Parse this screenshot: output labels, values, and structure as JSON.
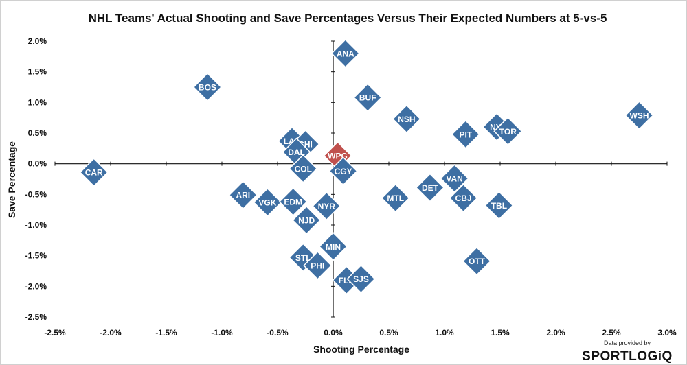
{
  "chart_data": {
    "type": "scatter",
    "title": "NHL Teams' Actual Shooting and Save Percentages Versus Their Expected Numbers at 5-vs-5",
    "xlabel": "Shooting Percentage",
    "ylabel": "Save Percentage",
    "xlim": [
      -2.5,
      3.0
    ],
    "ylim": [
      -2.5,
      2.0
    ],
    "x_ticks": [
      -2.5,
      -2.0,
      -1.5,
      -1.0,
      -0.5,
      0.0,
      0.5,
      1.0,
      1.5,
      2.0,
      2.5,
      3.0
    ],
    "y_ticks": [
      -2.5,
      -2.0,
      -1.5,
      -1.0,
      -0.5,
      0.0,
      0.5,
      1.0,
      1.5,
      2.0
    ],
    "x_tick_labels": [
      "-2.5%",
      "-2.0%",
      "-1.5%",
      "-1.0%",
      "-0.5%",
      "0.0%",
      "0.5%",
      "1.0%",
      "1.5%",
      "2.0%",
      "2.5%",
      "3.0%"
    ],
    "y_tick_labels": [
      "-2.5%",
      "-2.0%",
      "-1.5%",
      "-1.0%",
      "-0.5%",
      "0.0%",
      "0.5%",
      "1.0%",
      "1.5%",
      "2.0%"
    ],
    "grid": false,
    "colors": {
      "default": "#3e6fa3",
      "highlight": "#c0504d"
    },
    "points": [
      {
        "label": "ANA",
        "x": 0.11,
        "y": 1.8
      },
      {
        "label": "BOS",
        "x": -1.13,
        "y": 1.25
      },
      {
        "label": "BUF",
        "x": 0.31,
        "y": 1.08
      },
      {
        "label": "NSH",
        "x": 0.66,
        "y": 0.73
      },
      {
        "label": "PIT",
        "x": 1.19,
        "y": 0.48
      },
      {
        "label": "NYI",
        "x": 1.47,
        "y": 0.6
      },
      {
        "label": "TOR",
        "x": 1.57,
        "y": 0.53
      },
      {
        "label": "WSH",
        "x": 2.75,
        "y": 0.79
      },
      {
        "label": "LAK",
        "x": -0.37,
        "y": 0.37
      },
      {
        "label": "CHI",
        "x": -0.25,
        "y": 0.32
      },
      {
        "label": "DAL",
        "x": -0.33,
        "y": 0.19
      },
      {
        "label": "WPG",
        "x": 0.04,
        "y": 0.13,
        "highlight": true
      },
      {
        "label": "COL",
        "x": -0.27,
        "y": -0.08
      },
      {
        "label": "CGY",
        "x": 0.09,
        "y": -0.12
      },
      {
        "label": "CAR",
        "x": -2.15,
        "y": -0.14
      },
      {
        "label": "VAN",
        "x": 1.09,
        "y": -0.24
      },
      {
        "label": "DET",
        "x": 0.87,
        "y": -0.39
      },
      {
        "label": "CBJ",
        "x": 1.17,
        "y": -0.56
      },
      {
        "label": "MTL",
        "x": 0.56,
        "y": -0.56
      },
      {
        "label": "TBL",
        "x": 1.49,
        "y": -0.68
      },
      {
        "label": "ARI",
        "x": -0.81,
        "y": -0.51
      },
      {
        "label": "VGK",
        "x": -0.59,
        "y": -0.63
      },
      {
        "label": "EDM",
        "x": -0.36,
        "y": -0.62
      },
      {
        "label": "NYR",
        "x": -0.06,
        "y": -0.69
      },
      {
        "label": "NJD",
        "x": -0.24,
        "y": -0.92
      },
      {
        "label": "MIN",
        "x": 0.0,
        "y": -1.35
      },
      {
        "label": "STL",
        "x": -0.27,
        "y": -1.53
      },
      {
        "label": "PHI",
        "x": -0.14,
        "y": -1.66
      },
      {
        "label": "OTT",
        "x": 1.29,
        "y": -1.59
      },
      {
        "label": "FLA",
        "x": 0.12,
        "y": -1.9
      },
      {
        "label": "SJS",
        "x": 0.25,
        "y": -1.88
      }
    ]
  },
  "credit": {
    "provided_by": "Data provided by",
    "brand": "SPORTLOGiQ"
  }
}
